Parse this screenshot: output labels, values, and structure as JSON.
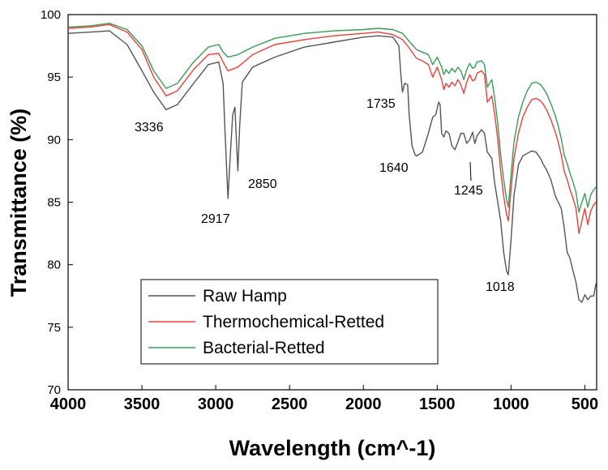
{
  "chart_data": {
    "type": "line",
    "xlabel": "Wavelength (cm^-1)",
    "ylabel": "Transmittance (%)",
    "xlim": [
      4000,
      420
    ],
    "ylim": [
      70,
      100
    ],
    "x_reversed": true,
    "grid": false,
    "legend_position": "bottom-left",
    "x_ticks": [
      4000,
      3500,
      3000,
      2500,
      2000,
      1500,
      1000,
      500
    ],
    "y_ticks": [
      70,
      75,
      80,
      85,
      90,
      95,
      100
    ],
    "series": [
      {
        "name": "Raw Hamp",
        "color": "#555555",
        "points": [
          [
            4000,
            98.5
          ],
          [
            3850,
            98.6
          ],
          [
            3720,
            98.7
          ],
          [
            3600,
            97.6
          ],
          [
            3500,
            95.5
          ],
          [
            3420,
            93.8
          ],
          [
            3336,
            92.4
          ],
          [
            3260,
            92.8
          ],
          [
            3150,
            94.5
          ],
          [
            3050,
            96.0
          ],
          [
            2980,
            96.2
          ],
          [
            2950,
            94.5
          ],
          [
            2935,
            90.0
          ],
          [
            2917,
            85.3
          ],
          [
            2900,
            89.0
          ],
          [
            2885,
            92.0
          ],
          [
            2870,
            92.6
          ],
          [
            2860,
            90.0
          ],
          [
            2850,
            87.5
          ],
          [
            2838,
            91.0
          ],
          [
            2820,
            94.6
          ],
          [
            2750,
            95.8
          ],
          [
            2600,
            96.6
          ],
          [
            2400,
            97.4
          ],
          [
            2200,
            97.8
          ],
          [
            2000,
            98.2
          ],
          [
            1900,
            98.3
          ],
          [
            1800,
            98.2
          ],
          [
            1760,
            97.5
          ],
          [
            1745,
            95.0
          ],
          [
            1735,
            93.8
          ],
          [
            1720,
            94.5
          ],
          [
            1700,
            94.4
          ],
          [
            1690,
            92.0
          ],
          [
            1670,
            89.5
          ],
          [
            1650,
            88.8
          ],
          [
            1640,
            88.7
          ],
          [
            1600,
            89.0
          ],
          [
            1560,
            90.5
          ],
          [
            1530,
            91.8
          ],
          [
            1510,
            92.0
          ],
          [
            1490,
            93.0
          ],
          [
            1480,
            92.8
          ],
          [
            1470,
            90.5
          ],
          [
            1455,
            90.2
          ],
          [
            1440,
            90.7
          ],
          [
            1420,
            90.5
          ],
          [
            1400,
            89.5
          ],
          [
            1380,
            89.2
          ],
          [
            1360,
            89.8
          ],
          [
            1340,
            90.5
          ],
          [
            1320,
            90.5
          ],
          [
            1300,
            89.7
          ],
          [
            1280,
            90.0
          ],
          [
            1260,
            90.6
          ],
          [
            1245,
            89.7
          ],
          [
            1230,
            90.3
          ],
          [
            1200,
            90.8
          ],
          [
            1180,
            90.5
          ],
          [
            1160,
            89.0
          ],
          [
            1130,
            88.5
          ],
          [
            1110,
            86.5
          ],
          [
            1090,
            85.0
          ],
          [
            1070,
            83.5
          ],
          [
            1050,
            81.0
          ],
          [
            1030,
            79.5
          ],
          [
            1018,
            79.2
          ],
          [
            1000,
            82.0
          ],
          [
            980,
            85.5
          ],
          [
            950,
            88.0
          ],
          [
            920,
            88.7
          ],
          [
            890,
            88.9
          ],
          [
            860,
            89.1
          ],
          [
            830,
            89.0
          ],
          [
            800,
            88.5
          ],
          [
            780,
            88.0
          ],
          [
            760,
            87.6
          ],
          [
            730,
            86.8
          ],
          [
            700,
            85.5
          ],
          [
            680,
            85.0
          ],
          [
            660,
            84.5
          ],
          [
            640,
            83.0
          ],
          [
            620,
            81.0
          ],
          [
            600,
            80.5
          ],
          [
            580,
            79.5
          ],
          [
            560,
            78.6
          ],
          [
            540,
            77.2
          ],
          [
            520,
            77.0
          ],
          [
            500,
            77.6
          ],
          [
            480,
            77.2
          ],
          [
            460,
            77.5
          ],
          [
            440,
            77.5
          ],
          [
            425,
            78.5
          ]
        ]
      },
      {
        "name": "Thermochemical-Retted",
        "color": "#e8413a",
        "points": [
          [
            4000,
            98.9
          ],
          [
            3850,
            99.0
          ],
          [
            3720,
            99.2
          ],
          [
            3600,
            98.6
          ],
          [
            3500,
            97.2
          ],
          [
            3420,
            95.0
          ],
          [
            3336,
            93.5
          ],
          [
            3260,
            93.9
          ],
          [
            3150,
            95.6
          ],
          [
            3050,
            96.8
          ],
          [
            2980,
            96.9
          ],
          [
            2950,
            96.2
          ],
          [
            2917,
            95.5
          ],
          [
            2850,
            95.8
          ],
          [
            2750,
            96.8
          ],
          [
            2600,
            97.6
          ],
          [
            2400,
            98.0
          ],
          [
            2200,
            98.3
          ],
          [
            2000,
            98.5
          ],
          [
            1900,
            98.6
          ],
          [
            1800,
            98.4
          ],
          [
            1735,
            98.0
          ],
          [
            1700,
            97.5
          ],
          [
            1640,
            96.5
          ],
          [
            1600,
            96.3
          ],
          [
            1560,
            96.0
          ],
          [
            1530,
            95.0
          ],
          [
            1500,
            95.8
          ],
          [
            1470,
            94.8
          ],
          [
            1455,
            94.0
          ],
          [
            1440,
            94.5
          ],
          [
            1420,
            94.2
          ],
          [
            1400,
            94.6
          ],
          [
            1380,
            94.3
          ],
          [
            1360,
            94.8
          ],
          [
            1340,
            94.4
          ],
          [
            1320,
            93.7
          ],
          [
            1300,
            94.6
          ],
          [
            1280,
            95.2
          ],
          [
            1260,
            94.7
          ],
          [
            1245,
            94.8
          ],
          [
            1230,
            95.3
          ],
          [
            1200,
            95.5
          ],
          [
            1180,
            95.2
          ],
          [
            1160,
            93.0
          ],
          [
            1130,
            93.5
          ],
          [
            1110,
            92.0
          ],
          [
            1090,
            90.0
          ],
          [
            1070,
            87.5
          ],
          [
            1050,
            85.5
          ],
          [
            1030,
            84.0
          ],
          [
            1018,
            83.5
          ],
          [
            1000,
            86.0
          ],
          [
            980,
            88.5
          ],
          [
            950,
            90.5
          ],
          [
            920,
            91.8
          ],
          [
            890,
            92.6
          ],
          [
            860,
            93.2
          ],
          [
            830,
            93.3
          ],
          [
            800,
            93.1
          ],
          [
            780,
            92.8
          ],
          [
            760,
            92.4
          ],
          [
            730,
            91.6
          ],
          [
            700,
            90.6
          ],
          [
            680,
            89.8
          ],
          [
            660,
            88.8
          ],
          [
            640,
            87.5
          ],
          [
            620,
            86.8
          ],
          [
            600,
            86.0
          ],
          [
            580,
            85.3
          ],
          [
            560,
            84.5
          ],
          [
            540,
            82.5
          ],
          [
            520,
            83.5
          ],
          [
            500,
            84.5
          ],
          [
            480,
            83.2
          ],
          [
            460,
            84.3
          ],
          [
            440,
            84.8
          ],
          [
            425,
            85.0
          ]
        ]
      },
      {
        "name": "Bacterial-Retted",
        "color": "#3a9a59",
        "points": [
          [
            4000,
            99.0
          ],
          [
            3850,
            99.1
          ],
          [
            3720,
            99.3
          ],
          [
            3600,
            98.8
          ],
          [
            3500,
            97.5
          ],
          [
            3420,
            95.5
          ],
          [
            3336,
            94.1
          ],
          [
            3260,
            94.5
          ],
          [
            3150,
            96.2
          ],
          [
            3050,
            97.4
          ],
          [
            2980,
            97.6
          ],
          [
            2950,
            97.0
          ],
          [
            2917,
            96.6
          ],
          [
            2850,
            96.8
          ],
          [
            2750,
            97.4
          ],
          [
            2600,
            98.1
          ],
          [
            2400,
            98.5
          ],
          [
            2200,
            98.7
          ],
          [
            2000,
            98.8
          ],
          [
            1900,
            98.9
          ],
          [
            1800,
            98.8
          ],
          [
            1735,
            98.5
          ],
          [
            1700,
            98.0
          ],
          [
            1640,
            97.2
          ],
          [
            1600,
            97.0
          ],
          [
            1560,
            96.8
          ],
          [
            1530,
            96.0
          ],
          [
            1500,
            96.6
          ],
          [
            1470,
            95.8
          ],
          [
            1455,
            95.2
          ],
          [
            1440,
            95.6
          ],
          [
            1420,
            95.3
          ],
          [
            1400,
            95.7
          ],
          [
            1380,
            95.4
          ],
          [
            1360,
            95.8
          ],
          [
            1340,
            95.5
          ],
          [
            1320,
            94.8
          ],
          [
            1300,
            95.6
          ],
          [
            1280,
            96.1
          ],
          [
            1260,
            95.7
          ],
          [
            1245,
            95.8
          ],
          [
            1230,
            96.2
          ],
          [
            1200,
            96.3
          ],
          [
            1180,
            96.0
          ],
          [
            1160,
            94.2
          ],
          [
            1130,
            94.8
          ],
          [
            1110,
            93.3
          ],
          [
            1090,
            91.3
          ],
          [
            1070,
            88.8
          ],
          [
            1050,
            86.8
          ],
          [
            1030,
            85.2
          ],
          [
            1018,
            84.6
          ],
          [
            1000,
            87.2
          ],
          [
            980,
            89.8
          ],
          [
            950,
            91.8
          ],
          [
            920,
            93.0
          ],
          [
            890,
            93.9
          ],
          [
            860,
            94.5
          ],
          [
            830,
            94.6
          ],
          [
            800,
            94.4
          ],
          [
            780,
            94.1
          ],
          [
            760,
            93.7
          ],
          [
            730,
            92.9
          ],
          [
            700,
            91.9
          ],
          [
            680,
            91.1
          ],
          [
            660,
            90.1
          ],
          [
            640,
            88.8
          ],
          [
            620,
            88.1
          ],
          [
            600,
            87.3
          ],
          [
            580,
            86.6
          ],
          [
            560,
            85.8
          ],
          [
            540,
            84.2
          ],
          [
            520,
            85.0
          ],
          [
            500,
            85.7
          ],
          [
            480,
            84.6
          ],
          [
            460,
            85.6
          ],
          [
            440,
            86.0
          ],
          [
            425,
            86.2
          ]
        ]
      }
    ],
    "annotations": [
      {
        "text": "3336"
      },
      {
        "text": "2917"
      },
      {
        "text": "2850"
      },
      {
        "text": "1735"
      },
      {
        "text": "1640"
      },
      {
        "text": "1245"
      },
      {
        "text": "1018"
      }
    ]
  }
}
